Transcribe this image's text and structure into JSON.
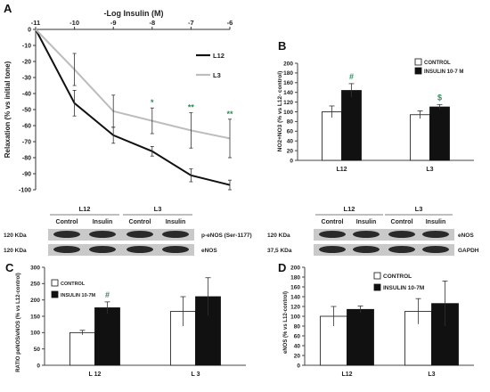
{
  "panels": {
    "A": "A",
    "B": "B",
    "C": "C",
    "D": "D"
  },
  "chart_data": [
    {
      "panel": "A",
      "type": "line",
      "xlabel": "-Log Insulin (M)",
      "ylabel": "Relaxation (% vs initial tone)",
      "x": [
        -11,
        -10,
        -9,
        -8,
        -7,
        -6
      ],
      "xticks": [
        "-11",
        "-10",
        "-9",
        "-8",
        "-7",
        "-6"
      ],
      "ylim": [
        -100,
        0
      ],
      "yticks": [
        0,
        -10,
        -20,
        -30,
        -40,
        -50,
        -60,
        -70,
        -80,
        -90,
        -100
      ],
      "series": [
        {
          "name": "L12",
          "color": "#111111",
          "values": [
            0,
            -46,
            -66,
            -76,
            -91,
            -97
          ],
          "errors": [
            0,
            8,
            5,
            3,
            4,
            3
          ]
        },
        {
          "name": "L3",
          "color": "#bdbdbd",
          "values": [
            0,
            -25,
            -51,
            -57,
            -63,
            -68
          ],
          "errors": [
            0,
            10,
            10,
            8,
            11,
            12
          ]
        }
      ],
      "annotations": [
        {
          "x": -8,
          "text": "*"
        },
        {
          "x": -7,
          "text": "**"
        },
        {
          "x": -6,
          "text": "**"
        }
      ]
    },
    {
      "panel": "B",
      "type": "bar",
      "ylabel": "NO2+NO3 (% vs L12- control)",
      "categories": [
        "L12",
        "L3"
      ],
      "ylim": [
        0,
        200
      ],
      "yticks": [
        0,
        20,
        40,
        60,
        80,
        100,
        120,
        140,
        160,
        180,
        200
      ],
      "series": [
        {
          "name": "CONTROL",
          "color": "#ffffff",
          "values": [
            100,
            94
          ],
          "errors": [
            12,
            8
          ]
        },
        {
          "name": "INSULIN 10-7 M",
          "color": "#111111",
          "values": [
            144,
            110
          ],
          "errors": [
            14,
            5
          ]
        }
      ],
      "annotations": [
        {
          "category": "L12",
          "text": "#"
        },
        {
          "category": "L3",
          "text": "$"
        }
      ]
    },
    {
      "panel": "C",
      "type": "bar",
      "ylabel": "RATIO peNOS/eNOS (% vs L12-control)",
      "categories": [
        "L 12",
        "L 3"
      ],
      "ylim": [
        0,
        300
      ],
      "yticks": [
        0,
        50,
        100,
        150,
        200,
        250,
        300
      ],
      "series": [
        {
          "name": "CONTROL",
          "color": "#ffffff",
          "values": [
            100,
            165
          ],
          "errors": [
            7,
            45
          ]
        },
        {
          "name": "INSULIN 10-7M",
          "color": "#111111",
          "values": [
            176,
            210
          ],
          "errors": [
            18,
            58
          ]
        }
      ],
      "annotations": [
        {
          "category": "L 12",
          "text": "#"
        }
      ]
    },
    {
      "panel": "D",
      "type": "bar",
      "ylabel": "eNOS (% vs L12-control)",
      "categories": [
        "L12",
        "L3"
      ],
      "ylim": [
        0,
        200
      ],
      "yticks": [
        0,
        20,
        40,
        60,
        80,
        100,
        120,
        140,
        160,
        180,
        200
      ],
      "series": [
        {
          "name": "CONTROL",
          "color": "#ffffff",
          "values": [
            100,
            110
          ],
          "errors": [
            20,
            26
          ]
        },
        {
          "name": "INSULIN 10-7M",
          "color": "#111111",
          "values": [
            114,
            126
          ],
          "errors": [
            7,
            46
          ]
        }
      ]
    }
  ],
  "blots": [
    {
      "id": "left",
      "groups": [
        "L12",
        "L3"
      ],
      "lanes": [
        "Control",
        "Insulin",
        "Control",
        "Insulin"
      ],
      "rows": [
        {
          "kda": "120 KDa",
          "label": "p-eNOS (Ser-1177)"
        },
        {
          "kda": "120 KDa",
          "label": "eNOS"
        }
      ]
    },
    {
      "id": "right",
      "groups": [
        "L12",
        "L3"
      ],
      "lanes": [
        "Control",
        "Insulin",
        "Control",
        "Insulin"
      ],
      "rows": [
        {
          "kda": "120 KDa",
          "label": "eNOS"
        },
        {
          "kda": "37,5 KDa",
          "label": "GAPDH"
        }
      ]
    }
  ]
}
